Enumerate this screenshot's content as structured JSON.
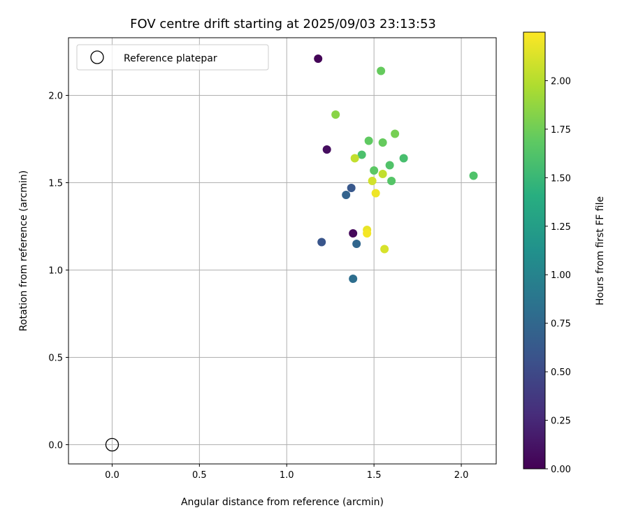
{
  "chart_data": {
    "type": "scatter",
    "title": "FOV centre drift starting at 2025/09/03 23:13:53",
    "xlabel": "Angular distance from reference (arcmin)",
    "ylabel": "Rotation from reference (arcmin)",
    "xlim": [
      -0.25,
      2.2
    ],
    "ylim": [
      -0.11,
      2.33
    ],
    "xticks": [
      "0.0",
      "0.5",
      "1.0",
      "1.5",
      "2.0"
    ],
    "yticks": [
      "0.0",
      "0.5",
      "1.0",
      "1.5",
      "2.0"
    ],
    "grid": true,
    "legend": {
      "position": "top-left",
      "entries": [
        "Reference platepar"
      ]
    },
    "reference_point": {
      "x": 0.0,
      "y": 0.0
    },
    "colorbar": {
      "label": "Hours from first FF file",
      "colormap": "viridis",
      "range": [
        0.0,
        2.25
      ],
      "ticks": [
        "0.00",
        "0.25",
        "0.50",
        "0.75",
        "1.00",
        "1.25",
        "1.50",
        "1.75",
        "2.00"
      ]
    },
    "points": [
      {
        "x": 1.18,
        "y": 2.21,
        "hours": 0.02
      },
      {
        "x": 1.23,
        "y": 1.69,
        "hours": 0.08
      },
      {
        "x": 1.38,
        "y": 1.21,
        "hours": 0.05
      },
      {
        "x": 1.2,
        "y": 1.16,
        "hours": 0.6
      },
      {
        "x": 1.37,
        "y": 1.47,
        "hours": 0.62
      },
      {
        "x": 1.34,
        "y": 1.43,
        "hours": 0.72
      },
      {
        "x": 1.4,
        "y": 1.15,
        "hours": 0.75
      },
      {
        "x": 1.38,
        "y": 0.95,
        "hours": 0.82
      },
      {
        "x": 1.43,
        "y": 1.66,
        "hours": 1.6
      },
      {
        "x": 1.67,
        "y": 1.64,
        "hours": 1.58
      },
      {
        "x": 2.07,
        "y": 1.54,
        "hours": 1.62
      },
      {
        "x": 1.6,
        "y": 1.51,
        "hours": 1.65
      },
      {
        "x": 1.59,
        "y": 1.6,
        "hours": 1.63
      },
      {
        "x": 1.5,
        "y": 1.57,
        "hours": 1.68
      },
      {
        "x": 1.47,
        "y": 1.74,
        "hours": 1.7
      },
      {
        "x": 1.55,
        "y": 1.73,
        "hours": 1.72
      },
      {
        "x": 1.62,
        "y": 1.78,
        "hours": 1.78
      },
      {
        "x": 1.54,
        "y": 2.14,
        "hours": 1.72
      },
      {
        "x": 1.28,
        "y": 1.89,
        "hours": 1.85
      },
      {
        "x": 1.39,
        "y": 1.64,
        "hours": 2.05
      },
      {
        "x": 1.55,
        "y": 1.55,
        "hours": 2.05
      },
      {
        "x": 1.49,
        "y": 1.51,
        "hours": 2.1
      },
      {
        "x": 1.51,
        "y": 1.44,
        "hours": 2.2
      },
      {
        "x": 1.46,
        "y": 1.23,
        "hours": 2.18
      },
      {
        "x": 1.46,
        "y": 1.21,
        "hours": 2.22
      },
      {
        "x": 1.56,
        "y": 1.12,
        "hours": 2.12
      }
    ]
  }
}
